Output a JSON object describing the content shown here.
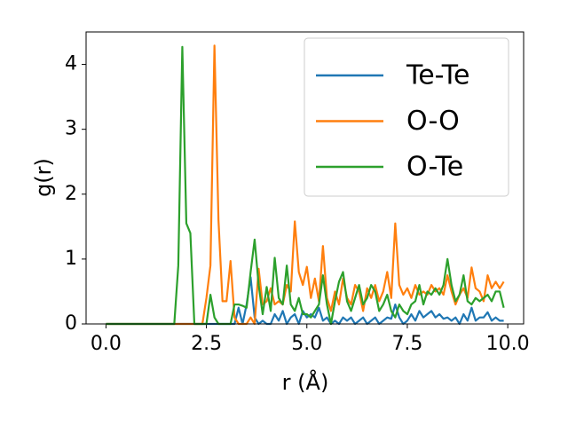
{
  "chart_data": {
    "type": "line",
    "xlabel": "r (Å)",
    "ylabel": "g(r)",
    "x": [
      0,
      0.1,
      0.2,
      0.3,
      0.4,
      0.5,
      0.6,
      0.7,
      0.8,
      0.9,
      1,
      1.1,
      1.2,
      1.3,
      1.4,
      1.5,
      1.6,
      1.7,
      1.8,
      1.9,
      2,
      2.1,
      2.2,
      2.3,
      2.4,
      2.5,
      2.6,
      2.7,
      2.8,
      2.9,
      3,
      3.1,
      3.2,
      3.3,
      3.4,
      3.5,
      3.6,
      3.7,
      3.8,
      3.9,
      4,
      4.1,
      4.2,
      4.3,
      4.4,
      4.5,
      4.6,
      4.7,
      4.8,
      4.9,
      5,
      5.1,
      5.2,
      5.3,
      5.4,
      5.5,
      5.6,
      5.7,
      5.8,
      5.9,
      6,
      6.1,
      6.2,
      6.3,
      6.4,
      6.5,
      6.6,
      6.7,
      6.8,
      6.9,
      7,
      7.1,
      7.2,
      7.3,
      7.4,
      7.5,
      7.6,
      7.7,
      7.8,
      7.9,
      8,
      8.1,
      8.2,
      8.3,
      8.4,
      8.5,
      8.6,
      8.7,
      8.8,
      8.9,
      9,
      9.1,
      9.2,
      9.3,
      9.4,
      9.5,
      9.6,
      9.7,
      9.8,
      9.9
    ],
    "series": [
      {
        "name": "Te-Te",
        "color": "#1f77b4",
        "values": [
          0,
          0,
          0,
          0,
          0,
          0,
          0,
          0,
          0,
          0,
          0,
          0,
          0,
          0,
          0,
          0,
          0,
          0,
          0,
          0,
          0,
          0,
          0,
          0,
          0,
          0,
          0,
          0,
          0,
          0,
          0,
          0,
          0,
          0.25,
          0,
          0.3,
          0.72,
          0.1,
          0,
          0.05,
          0,
          0,
          0.15,
          0.05,
          0.2,
          0,
          0.1,
          0.15,
          0,
          0.2,
          0.1,
          0.15,
          0.1,
          0.25,
          0.05,
          0.1,
          0,
          0.05,
          0,
          0.1,
          0.05,
          0.1,
          0,
          0.05,
          0.1,
          0,
          0.05,
          0.1,
          0,
          0.05,
          0.1,
          0.08,
          0.3,
          0.1,
          0,
          0.05,
          0.15,
          0.05,
          0.2,
          0.1,
          0.15,
          0.2,
          0.1,
          0.15,
          0.08,
          0.1,
          0.05,
          0.1,
          0,
          0.15,
          0.05,
          0.25,
          0.05,
          0.1,
          0.1,
          0.18,
          0.05,
          0.1,
          0.05,
          0.05
        ]
      },
      {
        "name": "O-O",
        "color": "#ff7f0e",
        "values": [
          0,
          0,
          0,
          0,
          0,
          0,
          0,
          0,
          0,
          0,
          0,
          0,
          0,
          0,
          0,
          0,
          0,
          0,
          0,
          0,
          0,
          0,
          0,
          0,
          0,
          0.4,
          0.9,
          4.29,
          1.6,
          0.35,
          0.35,
          0.97,
          0.1,
          0,
          0,
          0,
          0.1,
          0,
          0.85,
          0.3,
          0.35,
          0.55,
          0.3,
          0.35,
          0.3,
          0.6,
          0.5,
          1.58,
          0.8,
          0.6,
          0.88,
          0.4,
          0.7,
          0.35,
          1.2,
          0.4,
          0.2,
          0.5,
          0.3,
          0.7,
          0.4,
          0.3,
          0.6,
          0.5,
          0.2,
          0.55,
          0.4,
          0.6,
          0.35,
          0.5,
          0.8,
          0.4,
          1.55,
          0.6,
          0.45,
          0.55,
          0.4,
          0.6,
          0.45,
          0.5,
          0.45,
          0.6,
          0.5,
          0.55,
          0.45,
          0.75,
          0.5,
          0.3,
          0.45,
          0.55,
          0.4,
          0.87,
          0.55,
          0.5,
          0.35,
          0.75,
          0.55,
          0.65,
          0.55,
          0.65
        ]
      },
      {
        "name": "O-Te",
        "color": "#2ca02c",
        "values": [
          0,
          0,
          0,
          0,
          0,
          0,
          0,
          0,
          0,
          0,
          0,
          0,
          0,
          0,
          0,
          0,
          0,
          0,
          0.9,
          4.27,
          1.55,
          1.4,
          0,
          0,
          0,
          0,
          0.45,
          0.1,
          0,
          0,
          0,
          0,
          0.3,
          0.3,
          0.28,
          0.25,
          0.8,
          1.3,
          0.6,
          0.15,
          0.57,
          0.2,
          1.02,
          0.4,
          0.3,
          0.9,
          0.3,
          0.2,
          0.4,
          0.15,
          0.15,
          0.1,
          0.2,
          0.3,
          0.75,
          0.3,
          0,
          0.35,
          0.65,
          0.8,
          0.35,
          0.2,
          0.4,
          0.6,
          0.3,
          0.4,
          0.6,
          0.5,
          0.2,
          0.3,
          0.45,
          0.2,
          0.1,
          0.3,
          0.2,
          0.15,
          0.3,
          0.35,
          0.6,
          0.3,
          0.5,
          0.45,
          0.55,
          0.45,
          0.6,
          1,
          0.6,
          0.35,
          0.45,
          0.75,
          0.35,
          0.3,
          0.4,
          0.35,
          0.4,
          0.45,
          0.35,
          0.5,
          0.5,
          0.25
        ]
      }
    ],
    "xlim": [
      -0.495,
      10.395
    ],
    "ylim": [
      0,
      4.5
    ],
    "xticks": [
      {
        "value": 0,
        "label": "0.0"
      },
      2.5,
      {
        "value": 5,
        "label": "5.0"
      },
      7.5,
      {
        "value": 10,
        "label": "10.0"
      }
    ],
    "yticks": [
      0,
      1,
      2,
      3,
      4
    ],
    "legend": "upper right"
  }
}
